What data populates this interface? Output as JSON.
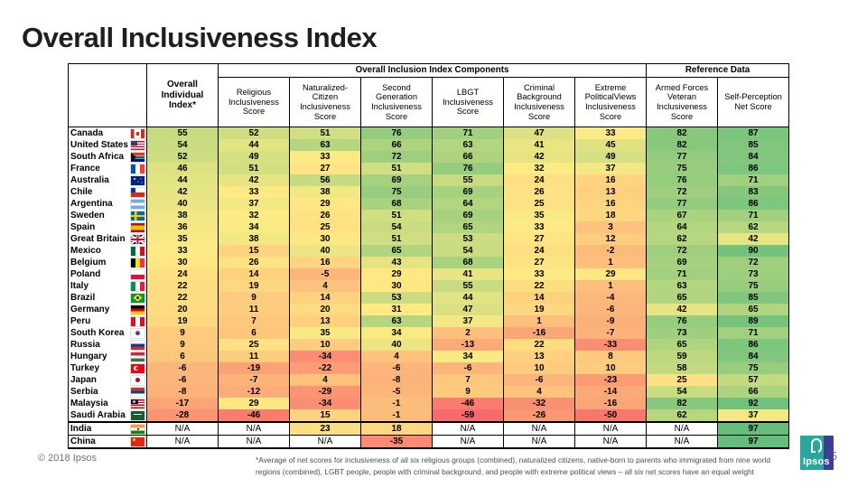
{
  "title": "Overall Inclusiveness Index",
  "chart_data": {
    "type": "table",
    "group_headers": [
      "Overall Inclusion Index Components",
      "Reference Data"
    ],
    "columns": [
      "Overall Individual Index*",
      "Religious Inclusiveness Score",
      "Naturalized-Citizen Inclusiveness Score",
      "Second Generation Inclusiveness Score",
      "LBGT Inclusiveness Score",
      "Criminal Background Inclusiveness Score",
      "Extreme PoliticalViews Inclusiveness Score",
      "Armed Forces Veteran Inclusiveness Score",
      "Self-Perception Net Score"
    ],
    "rows": [
      {
        "country": "Canada",
        "flag": "canada",
        "values": [
          55,
          52,
          51,
          76,
          71,
          47,
          33,
          82,
          87
        ]
      },
      {
        "country": "United States",
        "flag": "usa",
        "values": [
          54,
          44,
          63,
          66,
          63,
          41,
          45,
          82,
          85
        ]
      },
      {
        "country": "South Africa",
        "flag": "southafrica",
        "values": [
          52,
          49,
          33,
          72,
          66,
          42,
          49,
          77,
          84
        ]
      },
      {
        "country": "France",
        "flag": "france",
        "values": [
          46,
          51,
          27,
          51,
          76,
          32,
          37,
          75,
          86
        ]
      },
      {
        "country": "Australia",
        "flag": "australia",
        "values": [
          44,
          42,
          56,
          69,
          55,
          24,
          16,
          76,
          71
        ]
      },
      {
        "country": "Chile",
        "flag": "chile",
        "values": [
          42,
          33,
          38,
          75,
          69,
          26,
          13,
          72,
          83
        ]
      },
      {
        "country": "Argentina",
        "flag": "argentina",
        "values": [
          40,
          37,
          29,
          68,
          64,
          25,
          16,
          77,
          86
        ]
      },
      {
        "country": "Sweden",
        "flag": "sweden",
        "values": [
          38,
          32,
          26,
          51,
          69,
          35,
          18,
          67,
          71
        ]
      },
      {
        "country": "Spain",
        "flag": "spain",
        "values": [
          36,
          34,
          25,
          54,
          65,
          33,
          3,
          64,
          62
        ]
      },
      {
        "country": "Great Britain",
        "flag": "gb",
        "values": [
          35,
          38,
          30,
          51,
          53,
          27,
          12,
          62,
          42
        ]
      },
      {
        "country": "Mexico",
        "flag": "mexico",
        "values": [
          33,
          15,
          40,
          65,
          54,
          24,
          -2,
          72,
          90
        ]
      },
      {
        "country": "Belgium",
        "flag": "belgium",
        "values": [
          30,
          26,
          16,
          43,
          68,
          27,
          1,
          69,
          72
        ]
      },
      {
        "country": "Poland",
        "flag": "poland",
        "values": [
          24,
          14,
          -5,
          29,
          41,
          33,
          29,
          71,
          73
        ]
      },
      {
        "country": "Italy",
        "flag": "italy",
        "values": [
          22,
          19,
          4,
          30,
          55,
          22,
          1,
          63,
          75
        ]
      },
      {
        "country": "Brazil",
        "flag": "brazil",
        "values": [
          22,
          9,
          14,
          53,
          44,
          14,
          -4,
          65,
          85
        ]
      },
      {
        "country": "Germany",
        "flag": "germany",
        "values": [
          20,
          11,
          20,
          31,
          47,
          19,
          -6,
          42,
          65
        ]
      },
      {
        "country": "Peru",
        "flag": "peru",
        "values": [
          19,
          7,
          13,
          63,
          37,
          1,
          -9,
          76,
          89
        ]
      },
      {
        "country": "South Korea",
        "flag": "southkorea",
        "values": [
          9,
          6,
          35,
          34,
          2,
          -16,
          -7,
          73,
          71
        ]
      },
      {
        "country": "Russia",
        "flag": "russia",
        "values": [
          9,
          25,
          10,
          40,
          -13,
          22,
          -33,
          65,
          86
        ]
      },
      {
        "country": "Hungary",
        "flag": "hungary",
        "values": [
          6,
          11,
          -34,
          4,
          34,
          13,
          8,
          59,
          84
        ]
      },
      {
        "country": "Turkey",
        "flag": "turkey",
        "values": [
          -6,
          -19,
          -22,
          -6,
          -6,
          10,
          10,
          58,
          75
        ]
      },
      {
        "country": "Japan",
        "flag": "japan",
        "values": [
          -6,
          -7,
          4,
          -8,
          7,
          -6,
          -23,
          25,
          57
        ]
      },
      {
        "country": "Serbia",
        "flag": "serbia",
        "values": [
          -8,
          -12,
          -29,
          -5,
          9,
          4,
          -14,
          54,
          66
        ]
      },
      {
        "country": "Malaysia",
        "flag": "malaysia",
        "values": [
          -17,
          29,
          -34,
          -1,
          -46,
          -32,
          -16,
          82,
          92
        ]
      },
      {
        "country": "Saudi Arabia",
        "flag": "saudi",
        "values": [
          -28,
          -46,
          15,
          -1,
          -59,
          -26,
          -50,
          62,
          37
        ]
      },
      {
        "country": "India",
        "flag": "india",
        "grid": true,
        "sep": true,
        "values": [
          "N/A",
          "N/A",
          23,
          18,
          "N/A",
          "N/A",
          "N/A",
          "N/A",
          97
        ]
      },
      {
        "country": "China",
        "flag": "china",
        "grid": true,
        "values": [
          "N/A",
          "N/A",
          "N/A",
          -35,
          "N/A",
          "N/A",
          "N/A",
          "N/A",
          97
        ]
      }
    ],
    "colorscale": {
      "min_color": "#F8696B",
      "mid_color": "#FFEB84",
      "max_color": "#63BE7B",
      "min_value": -59,
      "mid_value": 32,
      "max_value": 97
    }
  },
  "footer": {
    "copyright": "© 2018 Ipsos",
    "page": "5",
    "footnote_line1": "*Average of net scores for inclusiveness of all six religious groups (combined), naturalized citizens, native-born to parents who immigrated from nine world",
    "footnote_line2": "regions (combined), LGBT people, people with criminal background, and people with extreme political views – all six net scores have an equal weight",
    "logo_text": "Ipsos"
  }
}
